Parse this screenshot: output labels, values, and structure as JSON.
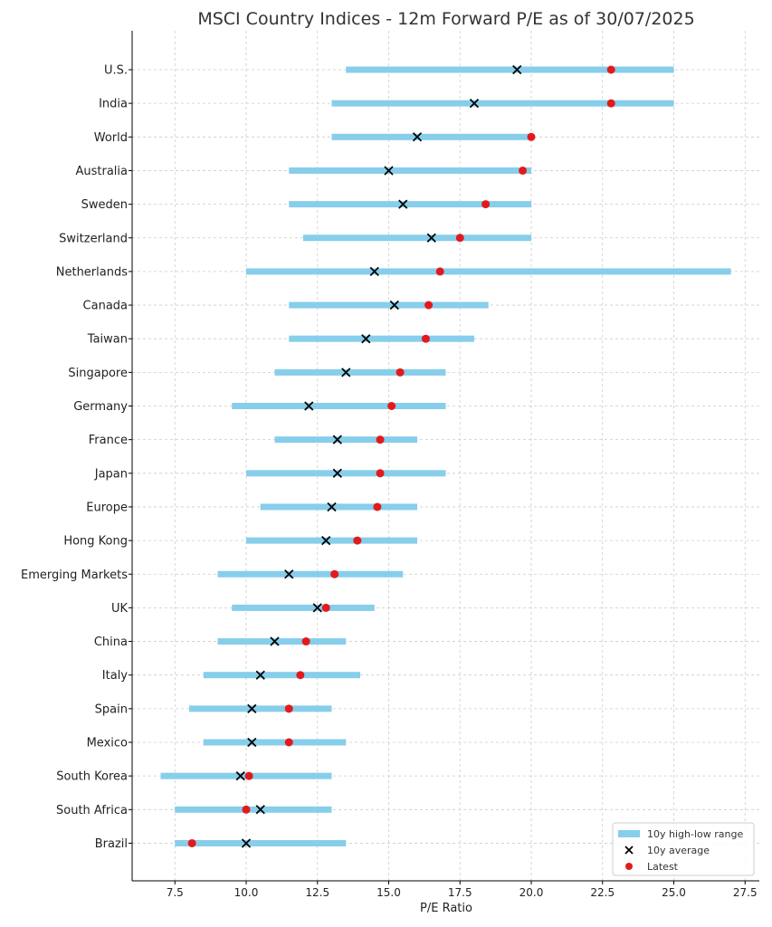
{
  "chart_data": {
    "type": "range-dot",
    "title": "MSCI Country Indices - 12m Forward P/E as of 30/07/2025",
    "xlabel": "P/E Ratio",
    "ylabel": "",
    "xlim": [
      6.0,
      28.0
    ],
    "xticks": [
      7.5,
      10.0,
      12.5,
      15.0,
      17.5,
      20.0,
      22.5,
      25.0,
      27.5
    ],
    "xtick_labels": [
      "7.5",
      "10.0",
      "12.5",
      "15.0",
      "17.5",
      "20.0",
      "22.5",
      "25.0",
      "27.5"
    ],
    "grid": true,
    "legend_position": "bottom-right",
    "colors": {
      "range": "#87ceeb",
      "average": "#000000",
      "latest": "#e31a1c"
    },
    "series": [
      {
        "name": "10y high-low range",
        "marker": "bar"
      },
      {
        "name": "10y average",
        "marker": "x"
      },
      {
        "name": "Latest",
        "marker": "dot"
      }
    ],
    "categories": [
      "U.S.",
      "India",
      "World",
      "Australia",
      "Sweden",
      "Switzerland",
      "Netherlands",
      "Canada",
      "Taiwan",
      "Singapore",
      "Germany",
      "France",
      "Japan",
      "Europe",
      "Hong Kong",
      "Emerging Markets",
      "UK",
      "China",
      "Italy",
      "Spain",
      "Mexico",
      "South Korea",
      "South Africa",
      "Brazil"
    ],
    "low": [
      13.5,
      13.0,
      13.0,
      11.5,
      11.5,
      12.0,
      10.0,
      11.5,
      11.5,
      11.0,
      9.5,
      11.0,
      10.0,
      10.5,
      10.0,
      9.0,
      9.5,
      9.0,
      8.5,
      8.0,
      8.5,
      7.0,
      7.5,
      7.5
    ],
    "high": [
      25.0,
      25.0,
      20.0,
      20.0,
      20.0,
      20.0,
      27.0,
      18.5,
      18.0,
      17.0,
      17.0,
      16.0,
      17.0,
      16.0,
      16.0,
      15.5,
      14.5,
      13.5,
      14.0,
      13.0,
      13.5,
      13.0,
      13.0,
      13.5
    ],
    "average": [
      19.5,
      18.0,
      16.0,
      15.0,
      15.5,
      16.5,
      14.5,
      15.2,
      14.2,
      13.5,
      12.2,
      13.2,
      13.2,
      13.0,
      12.8,
      11.5,
      12.5,
      11.0,
      10.5,
      10.2,
      10.2,
      9.8,
      10.5,
      10.0
    ],
    "latest": [
      22.8,
      22.8,
      20.0,
      19.7,
      18.4,
      17.5,
      16.8,
      16.4,
      16.3,
      15.4,
      15.1,
      14.7,
      14.7,
      14.6,
      13.9,
      13.1,
      12.8,
      12.1,
      11.9,
      11.5,
      11.5,
      10.1,
      10.0,
      8.1
    ]
  }
}
